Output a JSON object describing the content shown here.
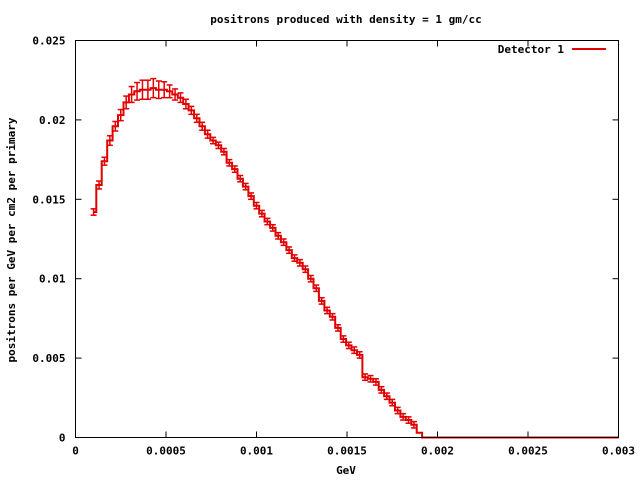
{
  "chart_data": {
    "type": "line",
    "title": "positrons produced with density = 1 gm/cc",
    "xlabel": "GeV",
    "ylabel": "positrons per GeV per cm2 per primary",
    "xlim": [
      0,
      0.003
    ],
    "ylim": [
      0,
      0.025
    ],
    "x_ticks": [
      {
        "value": 0,
        "label": "0"
      },
      {
        "value": 0.0005,
        "label": "0.0005"
      },
      {
        "value": 0.001,
        "label": "0.001"
      },
      {
        "value": 0.0015,
        "label": "0.0015"
      },
      {
        "value": 0.002,
        "label": "0.002"
      },
      {
        "value": 0.0025,
        "label": "0.0025"
      },
      {
        "value": 0.003,
        "label": "0.003"
      }
    ],
    "y_ticks": [
      {
        "value": 0,
        "label": "0"
      },
      {
        "value": 0.005,
        "label": "0.005"
      },
      {
        "value": 0.01,
        "label": "0.01"
      },
      {
        "value": 0.015,
        "label": "0.015"
      },
      {
        "value": 0.02,
        "label": "0.02"
      },
      {
        "value": 0.025,
        "label": "0.025"
      }
    ],
    "grid": false,
    "legend_position": "top-right",
    "series": [
      {
        "name": "Detector 1",
        "color": "#e00000",
        "style": "histogram-steps-with-errorbars",
        "x": [
          0.0001,
          0.00013,
          0.00016,
          0.00019,
          0.00022,
          0.00025,
          0.00028,
          0.00031,
          0.00034,
          0.00037,
          0.0004,
          0.00043,
          0.00046,
          0.00049,
          0.00052,
          0.00055,
          0.00058,
          0.00061,
          0.00064,
          0.00067,
          0.0007,
          0.00073,
          0.00076,
          0.00079,
          0.00082,
          0.00085,
          0.00088,
          0.00091,
          0.00094,
          0.00097,
          0.001,
          0.00103,
          0.00106,
          0.00109,
          0.00112,
          0.00115,
          0.00118,
          0.00121,
          0.00124,
          0.00127,
          0.0013,
          0.00133,
          0.00136,
          0.00139,
          0.00142,
          0.00145,
          0.00148,
          0.00151,
          0.00154,
          0.00157,
          0.0016,
          0.00163,
          0.00166,
          0.00169,
          0.00172,
          0.00175,
          0.00178,
          0.00181,
          0.00184,
          0.00187,
          0.0019,
          0.00193,
          0.00196,
          0.00199,
          0.00202,
          0.0025,
          0.003
        ],
        "y": [
          0.0142,
          0.0159,
          0.0174,
          0.0187,
          0.0196,
          0.0203,
          0.0211,
          0.0216,
          0.0218,
          0.0219,
          0.0219,
          0.022,
          0.0219,
          0.0219,
          0.0218,
          0.0216,
          0.0214,
          0.021,
          0.0206,
          0.0201,
          0.0196,
          0.0191,
          0.0187,
          0.0184,
          0.018,
          0.0173,
          0.0169,
          0.0163,
          0.0158,
          0.0152,
          0.0146,
          0.0141,
          0.0136,
          0.0132,
          0.0127,
          0.0123,
          0.0118,
          0.0113,
          0.011,
          0.0106,
          0.01,
          0.0094,
          0.0086,
          0.008,
          0.0076,
          0.0069,
          0.0062,
          0.0058,
          0.0055,
          0.0052,
          0.0038,
          0.0037,
          0.0035,
          0.003,
          0.0026,
          0.0022,
          0.0017,
          0.0013,
          0.0011,
          0.0008,
          0.0003,
          0.0,
          0.0,
          0.0,
          0.0,
          0.0,
          0.0
        ],
        "err": [
          0.0002,
          0.00025,
          0.00025,
          0.0003,
          0.0003,
          0.00035,
          0.0004,
          0.0005,
          0.00055,
          0.0006,
          0.0006,
          0.0006,
          0.00055,
          0.0005,
          0.0004,
          0.00035,
          0.0003,
          0.0003,
          0.00025,
          0.00025,
          0.00025,
          0.00025,
          0.0002,
          0.0002,
          0.0002,
          0.0002,
          0.0002,
          0.0002,
          0.0002,
          0.0002,
          0.0002,
          0.0002,
          0.0002,
          0.0002,
          0.0002,
          0.0002,
          0.0002,
          0.0002,
          0.0002,
          0.0002,
          0.0002,
          0.0002,
          0.0002,
          0.0002,
          0.0002,
          0.0002,
          0.0002,
          0.0002,
          0.0002,
          0.0002,
          0.0002,
          0.0002,
          0.0002,
          0.0002,
          0.0002,
          0.0002,
          0.0002,
          0.0002,
          0.0002,
          0.0002,
          0.0,
          0.0,
          0.0,
          0.0,
          0.0,
          0.0,
          0.0
        ]
      }
    ]
  }
}
